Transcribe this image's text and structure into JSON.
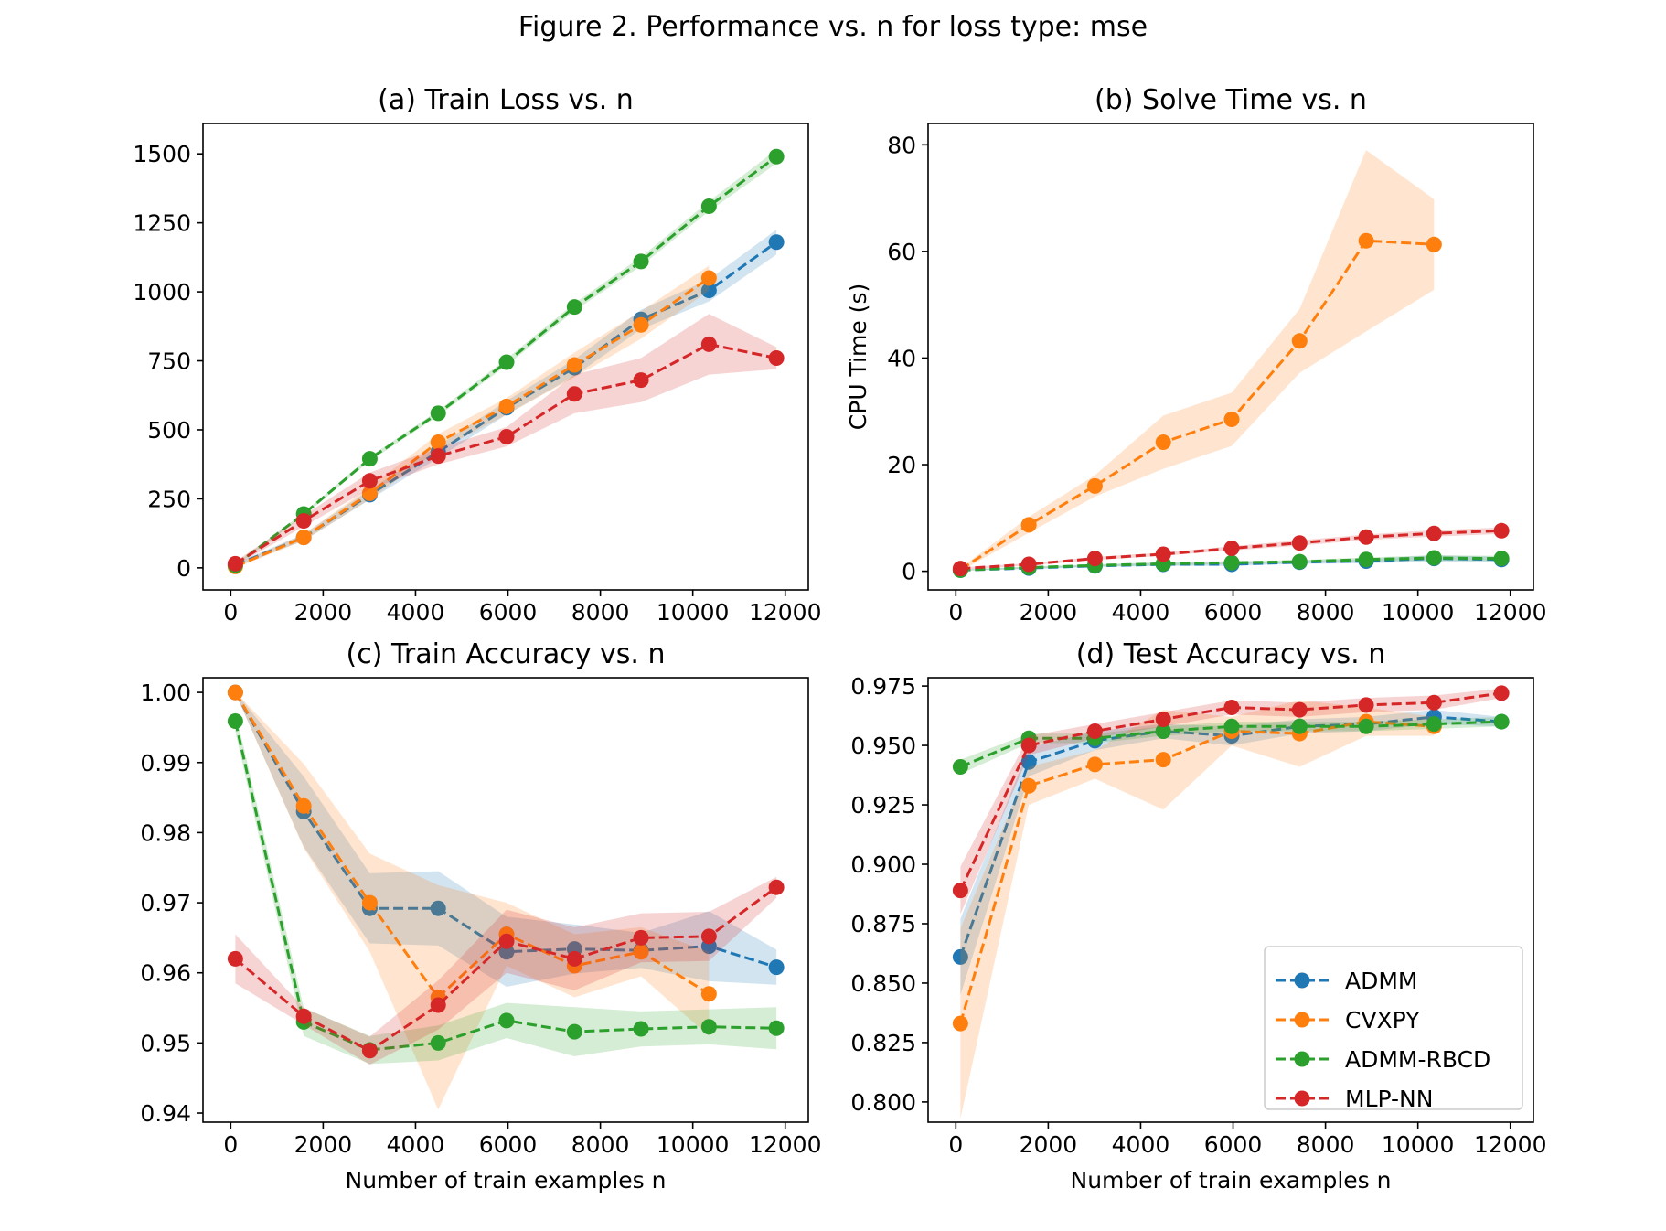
{
  "figure": {
    "title": "Figure 2. Performance vs. n for loss type: mse"
  },
  "colors": {
    "ADMM": "#1f77b4",
    "CVXPY": "#ff7f0e",
    "ADMM-RBCD": "#2ca02c",
    "MLP-NN": "#d62728"
  },
  "legend": {
    "location": "lower right of panel (d)",
    "entries": [
      "ADMM",
      "CVXPY",
      "ADMM-RBCD",
      "MLP-NN"
    ]
  },
  "chart_data": [
    {
      "id": "a",
      "type": "line",
      "title": "(a) Train Loss vs. n",
      "xlabel": "",
      "ylabel": "",
      "xlim": [
        -600,
        12500
      ],
      "ylim": [
        -80,
        1610
      ],
      "xticks": [
        0,
        2000,
        4000,
        6000,
        8000,
        10000,
        12000
      ],
      "xtick_labels": [
        "0",
        "2000",
        "4000",
        "6000",
        "8000",
        "10000",
        "12000"
      ],
      "yticks": [
        0,
        250,
        500,
        750,
        1000,
        1250,
        1500
      ],
      "ytick_labels": [
        "0",
        "250",
        "500",
        "750",
        "1000",
        "1250",
        "1500"
      ],
      "grid": false,
      "series": [
        {
          "name": "ADMM",
          "x": [
            100,
            1580,
            3010,
            4490,
            5970,
            7440,
            8880,
            10350,
            11810
          ],
          "y": [
            10,
            110,
            265,
            420,
            580,
            725,
            900,
            1005,
            1180
          ],
          "spread": [
            6,
            12,
            18,
            22,
            25,
            30,
            35,
            40,
            45
          ]
        },
        {
          "name": "CVXPY",
          "x": [
            100,
            1580,
            3010,
            4490,
            5970,
            7440,
            8880,
            10350
          ],
          "y": [
            5,
            110,
            270,
            455,
            585,
            735,
            880,
            1050
          ],
          "spread": [
            6,
            12,
            22,
            30,
            30,
            45,
            50,
            45
          ]
        },
        {
          "name": "ADMM-RBCD",
          "x": [
            100,
            1580,
            3010,
            4490,
            5970,
            7440,
            8880,
            10350,
            11810
          ],
          "y": [
            10,
            195,
            395,
            560,
            745,
            945,
            1110,
            1310,
            1490
          ],
          "spread": [
            4,
            6,
            8,
            10,
            12,
            14,
            16,
            18,
            25
          ]
        },
        {
          "name": "MLP-NN",
          "x": [
            100,
            1580,
            3010,
            4490,
            5970,
            7440,
            8880,
            10350,
            11810
          ],
          "y": [
            15,
            170,
            315,
            405,
            475,
            630,
            680,
            810,
            760
          ],
          "spread": [
            8,
            20,
            30,
            30,
            35,
            70,
            80,
            110,
            40
          ]
        }
      ]
    },
    {
      "id": "b",
      "type": "line",
      "title": "(b) Solve Time vs. n",
      "xlabel": "",
      "ylabel": "CPU Time (s)",
      "xlim": [
        -600,
        12500
      ],
      "ylim": [
        -3.5,
        84
      ],
      "xticks": [
        0,
        2000,
        4000,
        6000,
        8000,
        10000,
        12000
      ],
      "xtick_labels": [
        "0",
        "2000",
        "4000",
        "6000",
        "8000",
        "10000",
        "12000"
      ],
      "yticks": [
        0,
        20,
        40,
        60,
        80
      ],
      "ytick_labels": [
        "0",
        "20",
        "40",
        "60",
        "80"
      ],
      "grid": false,
      "series": [
        {
          "name": "ADMM",
          "x": [
            100,
            1580,
            3010,
            4490,
            5970,
            7440,
            8880,
            10350,
            11810
          ],
          "y": [
            0.2,
            0.6,
            1.0,
            1.3,
            1.3,
            1.7,
            1.9,
            2.4,
            2.2
          ],
          "spread": [
            0.1,
            0.2,
            0.2,
            0.3,
            0.3,
            0.3,
            0.4,
            0.6,
            0.5
          ]
        },
        {
          "name": "CVXPY",
          "x": [
            100,
            1580,
            3010,
            4490,
            5970,
            7440,
            8880,
            10350
          ],
          "y": [
            0.3,
            8.7,
            16.0,
            24.2,
            28.5,
            43.2,
            62.0,
            61.3
          ],
          "spread": [
            0.3,
            1.5,
            2.0,
            5.0,
            5.0,
            6.0,
            17.0,
            8.5
          ]
        },
        {
          "name": "ADMM-RBCD",
          "x": [
            100,
            1580,
            3010,
            4490,
            5970,
            7440,
            8880,
            10350,
            11810
          ],
          "y": [
            0.2,
            0.7,
            1.1,
            1.4,
            1.6,
            1.8,
            2.2,
            2.5,
            2.4
          ],
          "spread": [
            0.1,
            0.2,
            0.2,
            0.3,
            0.3,
            0.3,
            0.4,
            0.5,
            0.5
          ]
        },
        {
          "name": "MLP-NN",
          "x": [
            100,
            1580,
            3010,
            4490,
            5970,
            7440,
            8880,
            10350,
            11810
          ],
          "y": [
            0.5,
            1.3,
            2.4,
            3.2,
            4.3,
            5.3,
            6.4,
            7.1,
            7.6
          ],
          "spread": [
            0.2,
            0.2,
            0.3,
            0.3,
            0.4,
            0.5,
            0.5,
            0.6,
            0.6
          ]
        }
      ]
    },
    {
      "id": "c",
      "type": "line",
      "title": "(c) Train Accuracy vs. n",
      "xlabel": "Number of train examples n",
      "ylabel": "",
      "xlim": [
        -600,
        12500
      ],
      "ylim": [
        0.9387,
        1.0021
      ],
      "xticks": [
        0,
        2000,
        4000,
        6000,
        8000,
        10000,
        12000
      ],
      "xtick_labels": [
        "0",
        "2000",
        "4000",
        "6000",
        "8000",
        "10000",
        "12000"
      ],
      "yticks": [
        0.94,
        0.95,
        0.96,
        0.97,
        0.98,
        0.99,
        1.0
      ],
      "ytick_labels": [
        "0.94",
        "0.95",
        "0.96",
        "0.97",
        "0.98",
        "0.99",
        "1.00"
      ],
      "grid": false,
      "series": [
        {
          "name": "ADMM",
          "x": [
            100,
            1580,
            3010,
            4490,
            5970,
            7440,
            8880,
            10350,
            11810
          ],
          "y": [
            1.0,
            0.983,
            0.9692,
            0.9692,
            0.963,
            0.9634,
            0.9632,
            0.9638,
            0.9608
          ],
          "spread": [
            0.0001,
            0.005,
            0.005,
            0.0053,
            0.005,
            0.0035,
            0.0025,
            0.005,
            0.0025
          ]
        },
        {
          "name": "CVXPY",
          "x": [
            100,
            1580,
            3010,
            4490,
            5970,
            7440,
            8880,
            10350
          ],
          "y": [
            1.0,
            0.9838,
            0.97,
            0.9565,
            0.9655,
            0.961,
            0.963,
            0.957
          ],
          "spread": [
            0.0001,
            0.006,
            0.007,
            0.016,
            0.0045,
            0.0045,
            0.0035,
            0.006
          ]
        },
        {
          "name": "ADMM-RBCD",
          "x": [
            100,
            1580,
            3010,
            4490,
            5970,
            7440,
            8880,
            10350,
            11810
          ],
          "y": [
            0.9959,
            0.953,
            0.949,
            0.95,
            0.9532,
            0.9516,
            0.952,
            0.9523,
            0.9521
          ],
          "spread": [
            0.0015,
            0.002,
            0.002,
            0.0025,
            0.0025,
            0.0035,
            0.0025,
            0.0025,
            0.003
          ]
        },
        {
          "name": "MLP-NN",
          "x": [
            100,
            1580,
            3010,
            4490,
            5970,
            7440,
            8880,
            10350,
            11810
          ],
          "y": [
            0.962,
            0.9538,
            0.9489,
            0.9554,
            0.9645,
            0.962,
            0.965,
            0.9652,
            0.9722
          ],
          "spread": [
            0.0035,
            0.0012,
            0.002,
            0.0035,
            0.0045,
            0.0045,
            0.0035,
            0.0035,
            0.0015
          ]
        }
      ]
    },
    {
      "id": "d",
      "type": "line",
      "title": "(d) Test Accuracy vs. n",
      "xlabel": "Number of train examples n",
      "ylabel": "",
      "xlim": [
        -600,
        12500
      ],
      "ylim": [
        0.7915,
        0.9785
      ],
      "xticks": [
        0,
        2000,
        4000,
        6000,
        8000,
        10000,
        12000
      ],
      "xtick_labels": [
        "0",
        "2000",
        "4000",
        "6000",
        "8000",
        "10000",
        "12000"
      ],
      "yticks": [
        0.8,
        0.825,
        0.85,
        0.875,
        0.9,
        0.925,
        0.95,
        0.975
      ],
      "ytick_labels": [
        "0.800",
        "0.825",
        "0.850",
        "0.875",
        "0.900",
        "0.925",
        "0.950",
        "0.975"
      ],
      "grid": false,
      "series": [
        {
          "name": "ADMM",
          "x": [
            100,
            1580,
            3010,
            4490,
            5970,
            7440,
            8880,
            10350,
            11810
          ],
          "y": [
            0.861,
            0.943,
            0.952,
            0.956,
            0.954,
            0.958,
            0.959,
            0.962,
            0.96
          ],
          "spread": [
            0.016,
            0.006,
            0.004,
            0.003,
            0.004,
            0.003,
            0.003,
            0.003,
            0.002
          ]
        },
        {
          "name": "CVXPY",
          "x": [
            100,
            1580,
            3010,
            4490,
            5970,
            7440,
            8880,
            10350
          ],
          "y": [
            0.833,
            0.933,
            0.942,
            0.944,
            0.956,
            0.955,
            0.96,
            0.958
          ],
          "spread": [
            0.04,
            0.008,
            0.006,
            0.021,
            0.006,
            0.014,
            0.006,
            0.004
          ]
        },
        {
          "name": "ADMM-RBCD",
          "x": [
            100,
            1580,
            3010,
            4490,
            5970,
            7440,
            8880,
            10350,
            11810
          ],
          "y": [
            0.941,
            0.953,
            0.953,
            0.956,
            0.958,
            0.958,
            0.958,
            0.959,
            0.96
          ],
          "spread": [
            0.003,
            0.002,
            0.002,
            0.002,
            0.002,
            0.002,
            0.002,
            0.002,
            0.002
          ]
        },
        {
          "name": "MLP-NN",
          "x": [
            100,
            1580,
            3010,
            4490,
            5970,
            7440,
            8880,
            10350,
            11810
          ],
          "y": [
            0.889,
            0.95,
            0.956,
            0.961,
            0.966,
            0.965,
            0.967,
            0.968,
            0.972
          ],
          "spread": [
            0.01,
            0.004,
            0.003,
            0.003,
            0.003,
            0.003,
            0.003,
            0.003,
            0.002
          ]
        }
      ]
    }
  ]
}
